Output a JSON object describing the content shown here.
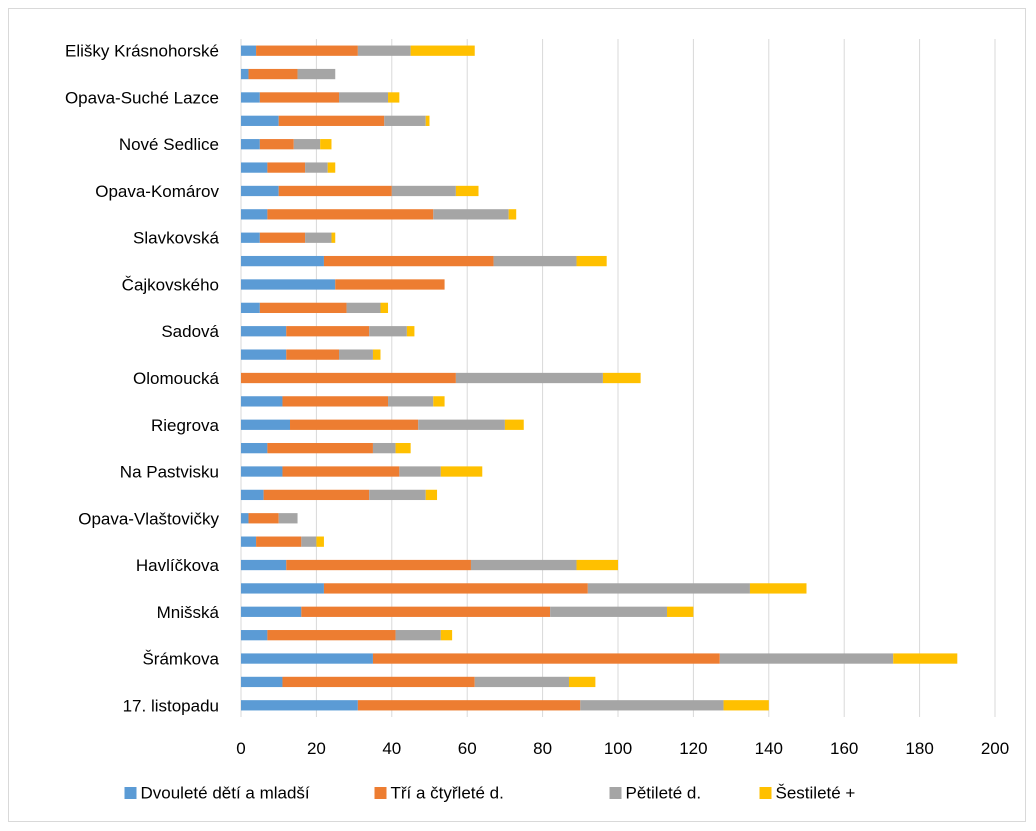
{
  "chart_data": {
    "type": "bar",
    "orientation": "horizontal",
    "stacked": true,
    "title": "",
    "xlabel": "",
    "ylabel": "",
    "xlim": [
      0,
      200
    ],
    "x_ticks": [
      0,
      20,
      40,
      60,
      80,
      100,
      120,
      140,
      160,
      180,
      200
    ],
    "grid": "vertical",
    "legend_position": "bottom",
    "categories": [
      "17. listopadu",
      "",
      "Šrámkova",
      "",
      "Mnišská",
      "",
      "Havlíčkova",
      "",
      "Opava-Vlaštovičky",
      "",
      "Na Pastvisku",
      "",
      "Riegrova",
      "",
      "Olomoucká",
      "",
      "Sadová",
      "",
      "Čajkovského",
      "",
      "Slavkovská",
      "",
      "Opava-Komárov",
      "",
      "Nové Sedlice",
      "",
      "Opava-Suché Lazce",
      "",
      "Elišky Krásnohorské"
    ],
    "series": [
      {
        "name": "Dvouleté dětí a mladší",
        "color": "#5B9BD5",
        "values": [
          31,
          11,
          35,
          7,
          16,
          22,
          12,
          4,
          2,
          6,
          11,
          7,
          13,
          11,
          0,
          12,
          12,
          5,
          25,
          22,
          5,
          7,
          10,
          7,
          5,
          10,
          5,
          2,
          4
        ]
      },
      {
        "name": "Tří a čtyřleté d.",
        "color": "#ED7D31",
        "values": [
          59,
          51,
          92,
          34,
          66,
          70,
          49,
          12,
          8,
          28,
          31,
          28,
          34,
          28,
          57,
          14,
          22,
          23,
          29,
          45,
          12,
          44,
          30,
          10,
          9,
          28,
          21,
          13,
          27
        ]
      },
      {
        "name": "Pětileté d.",
        "color": "#A5A5A5",
        "values": [
          38,
          25,
          46,
          12,
          31,
          43,
          28,
          4,
          5,
          15,
          11,
          6,
          23,
          12,
          39,
          9,
          10,
          9,
          0,
          22,
          7,
          20,
          17,
          6,
          7,
          11,
          13,
          10,
          14
        ]
      },
      {
        "name": "Šestileté +",
        "color": "#FFC000",
        "values": [
          12,
          7,
          17,
          3,
          7,
          15,
          11,
          2,
          0,
          3,
          11,
          4,
          5,
          3,
          10,
          2,
          2,
          2,
          0,
          8,
          1,
          2,
          6,
          2,
          3,
          1,
          3,
          0,
          17
        ]
      }
    ]
  }
}
